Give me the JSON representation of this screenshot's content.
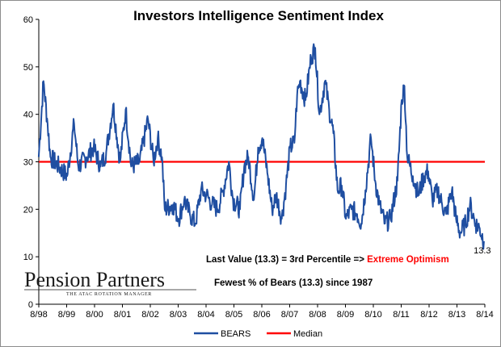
{
  "chart_data": {
    "type": "line",
    "title": "Investors Intelligence Sentiment Index",
    "ylim": [
      0,
      60
    ],
    "y_ticks": [
      0,
      10,
      20,
      30,
      40,
      50,
      60
    ],
    "x_ticks": [
      "8/98",
      "8/99",
      "8/00",
      "8/01",
      "8/02",
      "8/03",
      "8/04",
      "8/05",
      "8/06",
      "8/07",
      "8/08",
      "8/09",
      "8/10",
      "8/11",
      "8/12",
      "8/13",
      "8/14"
    ],
    "x_range": [
      1998.583,
      2014.583
    ],
    "series": [
      {
        "name": "BEARS",
        "color": "#1f4ea1",
        "anchors": [
          [
            1998.58,
            31
          ],
          [
            1998.75,
            47
          ],
          [
            1998.9,
            38
          ],
          [
            1999.0,
            31
          ],
          [
            1999.3,
            29
          ],
          [
            1999.6,
            27
          ],
          [
            1999.85,
            38
          ],
          [
            2000.0,
            29
          ],
          [
            2000.3,
            31
          ],
          [
            2000.55,
            33
          ],
          [
            2000.8,
            29
          ],
          [
            2001.0,
            32
          ],
          [
            2001.25,
            42
          ],
          [
            2001.5,
            30
          ],
          [
            2001.7,
            41
          ],
          [
            2001.9,
            29
          ],
          [
            2002.2,
            30
          ],
          [
            2002.5,
            39
          ],
          [
            2002.7,
            30
          ],
          [
            2002.85,
            35
          ],
          [
            2003.0,
            31
          ],
          [
            2003.1,
            20
          ],
          [
            2003.4,
            21
          ],
          [
            2003.6,
            18
          ],
          [
            2003.8,
            22
          ],
          [
            2004.0,
            19
          ],
          [
            2004.2,
            17
          ],
          [
            2004.4,
            24
          ],
          [
            2004.6,
            23
          ],
          [
            2004.8,
            21
          ],
          [
            2005.0,
            20
          ],
          [
            2005.2,
            24
          ],
          [
            2005.4,
            30
          ],
          [
            2005.55,
            22
          ],
          [
            2005.8,
            20
          ],
          [
            2005.95,
            29
          ],
          [
            2006.1,
            31
          ],
          [
            2006.3,
            22
          ],
          [
            2006.45,
            33
          ],
          [
            2006.6,
            35
          ],
          [
            2006.8,
            27
          ],
          [
            2006.95,
            20
          ],
          [
            2007.1,
            23
          ],
          [
            2007.3,
            18
          ],
          [
            2007.45,
            25
          ],
          [
            2007.6,
            33
          ],
          [
            2007.75,
            34
          ],
          [
            2007.85,
            44
          ],
          [
            2007.95,
            47
          ],
          [
            2008.15,
            43
          ],
          [
            2008.35,
            52
          ],
          [
            2008.5,
            54
          ],
          [
            2008.65,
            40
          ],
          [
            2008.85,
            47
          ],
          [
            2009.0,
            41
          ],
          [
            2009.15,
            36
          ],
          [
            2009.3,
            24
          ],
          [
            2009.45,
            25
          ],
          [
            2009.6,
            18
          ],
          [
            2009.8,
            20
          ],
          [
            2010.0,
            19
          ],
          [
            2010.15,
            17
          ],
          [
            2010.3,
            24
          ],
          [
            2010.5,
            35
          ],
          [
            2010.65,
            26
          ],
          [
            2010.8,
            21
          ],
          [
            2011.0,
            17
          ],
          [
            2011.2,
            18
          ],
          [
            2011.45,
            26
          ],
          [
            2011.6,
            43
          ],
          [
            2011.7,
            46
          ],
          [
            2011.8,
            31
          ],
          [
            2012.0,
            27
          ],
          [
            2012.2,
            23
          ],
          [
            2012.4,
            27
          ],
          [
            2012.55,
            28
          ],
          [
            2012.7,
            22
          ],
          [
            2012.9,
            24
          ],
          [
            2013.05,
            21
          ],
          [
            2013.2,
            19
          ],
          [
            2013.4,
            24
          ],
          [
            2013.55,
            18
          ],
          [
            2013.7,
            15
          ],
          [
            2013.9,
            17
          ],
          [
            2014.05,
            21
          ],
          [
            2014.25,
            17
          ],
          [
            2014.4,
            16
          ],
          [
            2014.55,
            13.3
          ]
        ]
      },
      {
        "name": "Median",
        "color": "#ff0000",
        "value": 30
      }
    ],
    "last_value_label": "13.3",
    "legend_position": "bottom"
  },
  "annotations": {
    "line1_prefix": "Last Value (13.3) = 3rd Percentile => ",
    "line1_highlight": "Extreme Optimism",
    "line2": "Fewest % of Bears (13.3) since 1987"
  },
  "logo": {
    "name": "Pension Partners",
    "tagline": "THE ATAC ROTATION MANAGER"
  }
}
